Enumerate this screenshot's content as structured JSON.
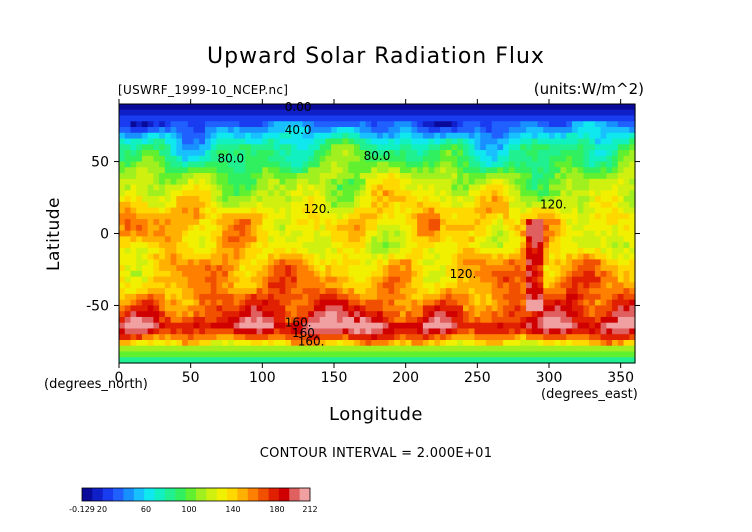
{
  "title": "Upward Solar Radiation Flux",
  "subtitle_left": "[USWRF_1999-10_NCEP.nc]",
  "subtitle_right": "(units:W/m^2)",
  "xlabel": "Longitude",
  "ylabel": "Latitude",
  "x_unit_left": "(degrees_north)",
  "x_unit_right": "(degrees_east)",
  "contour_note": "CONTOUR INTERVAL = 2.000E+01",
  "chart_data": {
    "type": "heatmap",
    "title": "Upward Solar Radiation Flux",
    "xlabel": "Longitude",
    "ylabel": "Latitude",
    "xlim": [
      0,
      360
    ],
    "ylim": [
      -90,
      90
    ],
    "x_ticks": [
      0,
      50,
      100,
      150,
      200,
      250,
      300,
      350
    ],
    "y_ticks": [
      50,
      0,
      -50
    ],
    "contour_interval": 20,
    "contour_labels": [
      {
        "text": "0.00",
        "lon": 125,
        "lat": 88
      },
      {
        "text": "40.0",
        "lon": 125,
        "lat": 72
      },
      {
        "text": "80.0",
        "lon": 78,
        "lat": 52
      },
      {
        "text": "80.0",
        "lon": 180,
        "lat": 54
      },
      {
        "text": "120.",
        "lon": 138,
        "lat": 17
      },
      {
        "text": "120.",
        "lon": 303,
        "lat": 20
      },
      {
        "text": "120.",
        "lon": 240,
        "lat": -28
      },
      {
        "text": "160.",
        "lon": 125,
        "lat": -62
      },
      {
        "text": "160.",
        "lon": 130,
        "lat": -69
      },
      {
        "text": "160.",
        "lon": 134,
        "lat": -75
      }
    ],
    "latitude_profile": [
      {
        "lat": 90,
        "value": 0
      },
      {
        "lat": 80,
        "value": 20
      },
      {
        "lat": 70,
        "value": 50
      },
      {
        "lat": 60,
        "value": 80
      },
      {
        "lat": 50,
        "value": 90
      },
      {
        "lat": 40,
        "value": 110
      },
      {
        "lat": 30,
        "value": 120
      },
      {
        "lat": 20,
        "value": 130
      },
      {
        "lat": 10,
        "value": 145
      },
      {
        "lat": 0,
        "value": 140
      },
      {
        "lat": -10,
        "value": 130
      },
      {
        "lat": -20,
        "value": 145
      },
      {
        "lat": -30,
        "value": 150
      },
      {
        "lat": -40,
        "value": 155
      },
      {
        "lat": -50,
        "value": 170
      },
      {
        "lat": -60,
        "value": 185
      },
      {
        "lat": -65,
        "value": 200
      },
      {
        "lat": -70,
        "value": 175
      },
      {
        "lat": -75,
        "value": 150
      },
      {
        "lat": -80,
        "value": 110
      },
      {
        "lat": -90,
        "value": 80
      }
    ],
    "colorbar": {
      "min": -0.129,
      "max": 212,
      "tick_labels": [
        "-0.129",
        "20",
        "60",
        "100",
        "140",
        "180",
        "212"
      ],
      "colors": [
        "#0a0a9a",
        "#1020c8",
        "#1a3cf0",
        "#2060ff",
        "#1890ff",
        "#18c0ff",
        "#10e8f0",
        "#10f0c0",
        "#20f090",
        "#30f060",
        "#60f030",
        "#a0f020",
        "#d0f010",
        "#f0f000",
        "#ffd800",
        "#ffb000",
        "#ff8000",
        "#f05000",
        "#e02000",
        "#d00000",
        "#e06060",
        "#f0a0a0"
      ]
    }
  },
  "colors": {
    "land_band": "#33cc33",
    "polar_cap": "#0a0a9a"
  }
}
